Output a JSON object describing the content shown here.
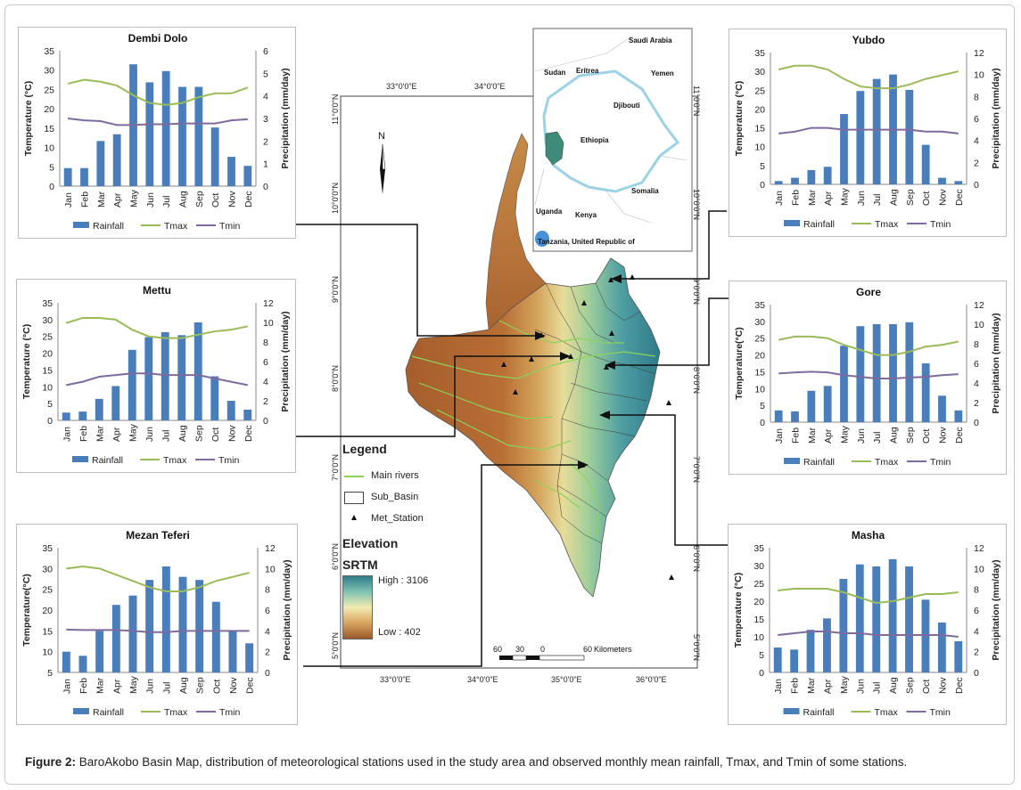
{
  "caption": {
    "label": "Figure 2:",
    "text": " BaroAkobo Basin Map, distribution of meteorological stations used in the study area and observed monthly mean rainfall, Tmax, and Tmin of some stations."
  },
  "map": {
    "lon_labels": [
      "33°0'0\"E",
      "34°0'0\"E",
      "35°0'0\"E",
      "36°0'0\"E"
    ],
    "top_lon_labels": [
      "33°0'0\"E",
      "34°0'0\"E"
    ],
    "left_lat_labels": [
      "11°0'0\"N",
      "10°0'0\"N",
      "9°0'0\"N",
      "8°0'0\"N",
      "7°0'0\"N",
      "6°0'0\"N",
      "5°0'0\"N"
    ],
    "right_lat_labels": [
      "11°0'0\"N",
      "10°0'0\"N",
      "9°0'0\"N",
      "8°0'0\"N",
      "7°0'0\"N",
      "6°0'0\"N",
      "5°0'0\"N"
    ],
    "north_label": "N",
    "scale": {
      "labels": [
        "60",
        "30",
        "0",
        "60"
      ],
      "unit": "Kilometers"
    },
    "inset_labels": [
      "Saudi Arabia",
      "Sudan",
      "Eritrea",
      "Yemen",
      "Djibouti",
      "Ethiopia",
      "Somalia",
      "Uganda",
      "Kenya",
      "Tanzania, United Republic of"
    ],
    "legend": {
      "title": "Legend",
      "items": [
        "Main rivers",
        "Sub_Basin",
        "Met_Station"
      ],
      "elevation_title": "Elevation",
      "srtm_title": "SRTM",
      "high": "High : 3106",
      "low": "Low : 402"
    }
  },
  "charts": [
    {
      "station": "Dembi Dolo",
      "y_left_label": "Temperature (°C)",
      "y_right_label": "Precipitation (mm/day)",
      "y_left": [
        0,
        35
      ],
      "y_right": [
        0,
        6
      ],
      "left_ticks": [
        0,
        5,
        10,
        15,
        20,
        25,
        30,
        35
      ],
      "right_ticks": [
        0,
        1,
        2,
        3,
        4,
        5,
        6
      ],
      "rainfall": [
        0.8,
        0.8,
        2.0,
        2.3,
        5.4,
        4.6,
        5.1,
        4.4,
        4.4,
        2.6,
        1.3,
        0.9
      ],
      "tmax": [
        26.5,
        27.5,
        27,
        26,
        23.5,
        21.5,
        21,
        21.5,
        23,
        24,
        24,
        25.5
      ],
      "tmin": [
        17.5,
        17,
        16.8,
        15.8,
        15.8,
        16,
        16,
        16.2,
        16.2,
        16.2,
        17,
        17.3
      ]
    },
    {
      "station": "Yubdo",
      "y_left_label": "Temperature (°C)",
      "y_right_label": "Precipitation (mm/day)",
      "y_left": [
        0,
        35
      ],
      "y_right": [
        0,
        12
      ],
      "left_ticks": [
        0,
        5,
        10,
        15,
        20,
        25,
        30,
        35
      ],
      "right_ticks": [
        0,
        2,
        4,
        6,
        8,
        10,
        12
      ],
      "rainfall": [
        0.3,
        0.6,
        1.3,
        1.6,
        6.4,
        8.5,
        9.6,
        10.0,
        8.6,
        3.6,
        0.6,
        0.3
      ],
      "tmax": [
        30.5,
        31.5,
        31.5,
        30.5,
        28,
        26,
        25.5,
        25.5,
        26.5,
        28,
        29,
        30
      ],
      "tmin": [
        13.5,
        14,
        15,
        15,
        14.5,
        14.5,
        14.5,
        14.5,
        14.5,
        14,
        14,
        13.5
      ]
    },
    {
      "station": "Mettu",
      "y_left_label": "Temperature (°C)",
      "y_right_label": "Precipitation (mm/day)",
      "y_left": [
        0,
        35
      ],
      "y_right": [
        0,
        12
      ],
      "left_ticks": [
        0,
        5,
        10,
        15,
        20,
        25,
        30,
        35
      ],
      "right_ticks": [
        0,
        2,
        4,
        6,
        8,
        10,
        12
      ],
      "rainfall": [
        0.8,
        0.9,
        2.2,
        3.5,
        7.2,
        8.5,
        9.0,
        8.7,
        10.0,
        4.5,
        2.0,
        1.1
      ],
      "tmax": [
        29,
        30.5,
        30.5,
        30,
        27,
        25,
        24.5,
        24.5,
        25.5,
        26.5,
        27,
        28
      ],
      "tmin": [
        10.5,
        11.5,
        13,
        13.5,
        14,
        14,
        13.5,
        13.5,
        13.5,
        12.5,
        11.5,
        10.5
      ]
    },
    {
      "station": "Gore",
      "y_left_label": "Temperature(°C)",
      "y_right_label": "Precipitation (mm/day)",
      "y_left": [
        0,
        35
      ],
      "y_right": [
        0,
        12
      ],
      "left_ticks": [
        0,
        5,
        10,
        15,
        20,
        25,
        30,
        35
      ],
      "right_ticks": [
        0,
        2,
        4,
        6,
        8,
        10,
        12
      ],
      "rainfall": [
        1.2,
        1.1,
        3.2,
        3.7,
        7.8,
        9.8,
        10.0,
        10.0,
        10.2,
        6.0,
        2.7,
        1.2
      ],
      "tmax": [
        24.5,
        25.5,
        25.5,
        25,
        23,
        21.5,
        20,
        20,
        21,
        22.5,
        23,
        24
      ],
      "tmin": [
        14.5,
        14.8,
        15,
        14.8,
        14,
        13.5,
        13,
        13,
        13.3,
        13.5,
        14,
        14.3
      ]
    },
    {
      "station": "Mezan Teferi",
      "y_left_label": "Temperature(°C)",
      "y_right_label": "Precipitation (mm/day)",
      "y_left": [
        5,
        35
      ],
      "y_right": [
        0,
        12
      ],
      "left_ticks": [
        5,
        10,
        15,
        20,
        25,
        30,
        35
      ],
      "right_ticks": [
        0,
        2,
        4,
        6,
        8,
        10,
        12
      ],
      "rainfall": [
        2.0,
        1.6,
        4.0,
        6.5,
        7.4,
        8.9,
        10.2,
        9.2,
        8.9,
        6.8,
        4.0,
        2.8
      ],
      "tmax": [
        30,
        30.5,
        30,
        28.5,
        27,
        25.5,
        24.5,
        24.5,
        25.5,
        27,
        28,
        29
      ],
      "tmin": [
        15.3,
        15.2,
        15.2,
        15.2,
        15,
        14.7,
        14.7,
        15,
        15,
        15,
        15,
        15
      ]
    },
    {
      "station": "Masha",
      "y_left_label": "Temperature (°C)",
      "y_right_label": "Precipitation (mm/day)",
      "y_left": [
        0,
        35
      ],
      "y_right": [
        0,
        12
      ],
      "left_ticks": [
        0,
        5,
        10,
        15,
        20,
        25,
        30,
        35
      ],
      "right_ticks": [
        0,
        2,
        4,
        6,
        8,
        10,
        12
      ],
      "rainfall": [
        2.4,
        2.2,
        4.1,
        5.2,
        9.0,
        10.4,
        10.2,
        10.9,
        10.2,
        7.0,
        4.8,
        3.0
      ],
      "tmax": [
        23,
        23.5,
        23.5,
        23.5,
        22.5,
        21,
        19.5,
        20,
        21,
        22,
        22,
        22.5
      ],
      "tmin": [
        10.5,
        11,
        11.5,
        11.5,
        11,
        11,
        10.5,
        10.5,
        10.5,
        10.5,
        10.5,
        10
      ],
      "note": ""
    }
  ],
  "months": [
    "Jan",
    "Feb",
    "Mar",
    "Apr",
    "May",
    "Jun",
    "Jul",
    "Aug",
    "Sep",
    "Oct",
    "Nov",
    "Dec"
  ],
  "series_legend": [
    "Rainfall",
    "Tmax",
    "Tmin"
  ],
  "colors": {
    "rainfall": "#4a7ebb",
    "tmax": "#9bbb59",
    "tmin": "#7f6a9e",
    "river": "#8bd35a",
    "inset_basin": "#9cd2e6"
  },
  "chart_data": [
    {
      "type": "bar",
      "title": "Dembi Dolo",
      "categories": [
        "Jan",
        "Feb",
        "Mar",
        "Apr",
        "May",
        "Jun",
        "Jul",
        "Aug",
        "Sep",
        "Oct",
        "Nov",
        "Dec"
      ],
      "series": [
        {
          "name": "Rainfall",
          "values": [
            0.8,
            0.8,
            2.0,
            2.3,
            5.4,
            4.6,
            5.1,
            4.4,
            4.4,
            2.6,
            1.3,
            0.9
          ]
        },
        {
          "name": "Tmax",
          "values": [
            26.5,
            27.5,
            27,
            26,
            23.5,
            21.5,
            21,
            21.5,
            23,
            24,
            24,
            25.5
          ]
        },
        {
          "name": "Tmin",
          "values": [
            17.5,
            17,
            16.8,
            15.8,
            15.8,
            16,
            16,
            16.2,
            16.2,
            16.2,
            17,
            17.3
          ]
        }
      ]
    },
    {
      "type": "bar",
      "title": "Yubdo",
      "categories": [
        "Jan",
        "Feb",
        "Mar",
        "Apr",
        "May",
        "Jun",
        "Jul",
        "Aug",
        "Sep",
        "Oct",
        "Nov",
        "Dec"
      ],
      "series": [
        {
          "name": "Rainfall",
          "values": [
            0.3,
            0.6,
            1.3,
            1.6,
            6.4,
            8.5,
            9.6,
            10.0,
            8.6,
            3.6,
            0.6,
            0.3
          ]
        },
        {
          "name": "Tmax",
          "values": [
            30.5,
            31.5,
            31.5,
            30.5,
            28,
            26,
            25.5,
            25.5,
            26.5,
            28,
            29,
            30
          ]
        },
        {
          "name": "Tmin",
          "values": [
            13.5,
            14,
            15,
            15,
            14.5,
            14.5,
            14.5,
            14.5,
            14.5,
            14,
            14,
            13.5
          ]
        }
      ]
    },
    {
      "type": "bar",
      "title": "Mettu",
      "categories": [
        "Jan",
        "Feb",
        "Mar",
        "Apr",
        "May",
        "Jun",
        "Jul",
        "Aug",
        "Sep",
        "Oct",
        "Nov",
        "Dec"
      ],
      "series": [
        {
          "name": "Rainfall",
          "values": [
            0.8,
            0.9,
            2.2,
            3.5,
            7.2,
            8.5,
            9.0,
            8.7,
            10.0,
            4.5,
            2.0,
            1.1
          ]
        },
        {
          "name": "Tmax",
          "values": [
            29,
            30.5,
            30.5,
            30,
            27,
            25,
            24.5,
            24.5,
            25.5,
            26.5,
            27,
            28
          ]
        },
        {
          "name": "Tmin",
          "values": [
            10.5,
            11.5,
            13,
            13.5,
            14,
            14,
            13.5,
            13.5,
            13.5,
            12.5,
            11.5,
            10.5
          ]
        }
      ]
    },
    {
      "type": "bar",
      "title": "Gore",
      "categories": [
        "Jan",
        "Feb",
        "Mar",
        "Apr",
        "May",
        "Jun",
        "Jul",
        "Aug",
        "Sep",
        "Oct",
        "Nov",
        "Dec"
      ],
      "series": [
        {
          "name": "Rainfall",
          "values": [
            1.2,
            1.1,
            3.2,
            3.7,
            7.8,
            9.8,
            10.0,
            10.0,
            10.2,
            6.0,
            2.7,
            1.2
          ]
        },
        {
          "name": "Tmax",
          "values": [
            24.5,
            25.5,
            25.5,
            25,
            23,
            21.5,
            20,
            20,
            21,
            22.5,
            23,
            24
          ]
        },
        {
          "name": "Tmin",
          "values": [
            14.5,
            14.8,
            15,
            14.8,
            14,
            13.5,
            13,
            13,
            13.3,
            13.5,
            14,
            14.3
          ]
        }
      ]
    },
    {
      "type": "bar",
      "title": "Mezan Teferi",
      "categories": [
        "Jan",
        "Feb",
        "Mar",
        "Apr",
        "May",
        "Jun",
        "Jul",
        "Aug",
        "Sep",
        "Oct",
        "Nov",
        "Dec"
      ],
      "series": [
        {
          "name": "Rainfall",
          "values": [
            2.0,
            1.6,
            4.0,
            6.5,
            7.4,
            8.9,
            10.2,
            9.2,
            8.9,
            6.8,
            4.0,
            2.8
          ]
        },
        {
          "name": "Tmax",
          "values": [
            30,
            30.5,
            30,
            28.5,
            27,
            25.5,
            24.5,
            24.5,
            25.5,
            27,
            28,
            29
          ]
        },
        {
          "name": "Tmin",
          "values": [
            15.3,
            15.2,
            15.2,
            15.2,
            15,
            14.7,
            14.7,
            15,
            15,
            15,
            15,
            15
          ]
        }
      ]
    },
    {
      "type": "bar",
      "title": "Masha",
      "categories": [
        "Jan",
        "Feb",
        "Mar",
        "Apr",
        "May",
        "Jun",
        "Jul",
        "Aug",
        "Sep",
        "Oct",
        "Nov",
        "Dec"
      ],
      "series": [
        {
          "name": "Rainfall",
          "values": [
            2.4,
            2.2,
            4.1,
            5.2,
            9.0,
            10.4,
            10.2,
            10.9,
            10.2,
            7.0,
            4.8,
            3.0
          ]
        },
        {
          "name": "Tmax",
          "values": [
            23,
            23.5,
            23.5,
            23.5,
            22.5,
            21,
            19.5,
            20,
            21,
            22,
            22,
            22.5
          ]
        },
        {
          "name": "Tmin",
          "values": [
            10.5,
            11,
            11.5,
            11.5,
            11,
            11,
            10.5,
            10.5,
            10.5,
            10.5,
            10.5,
            10
          ]
        }
      ]
    }
  ]
}
